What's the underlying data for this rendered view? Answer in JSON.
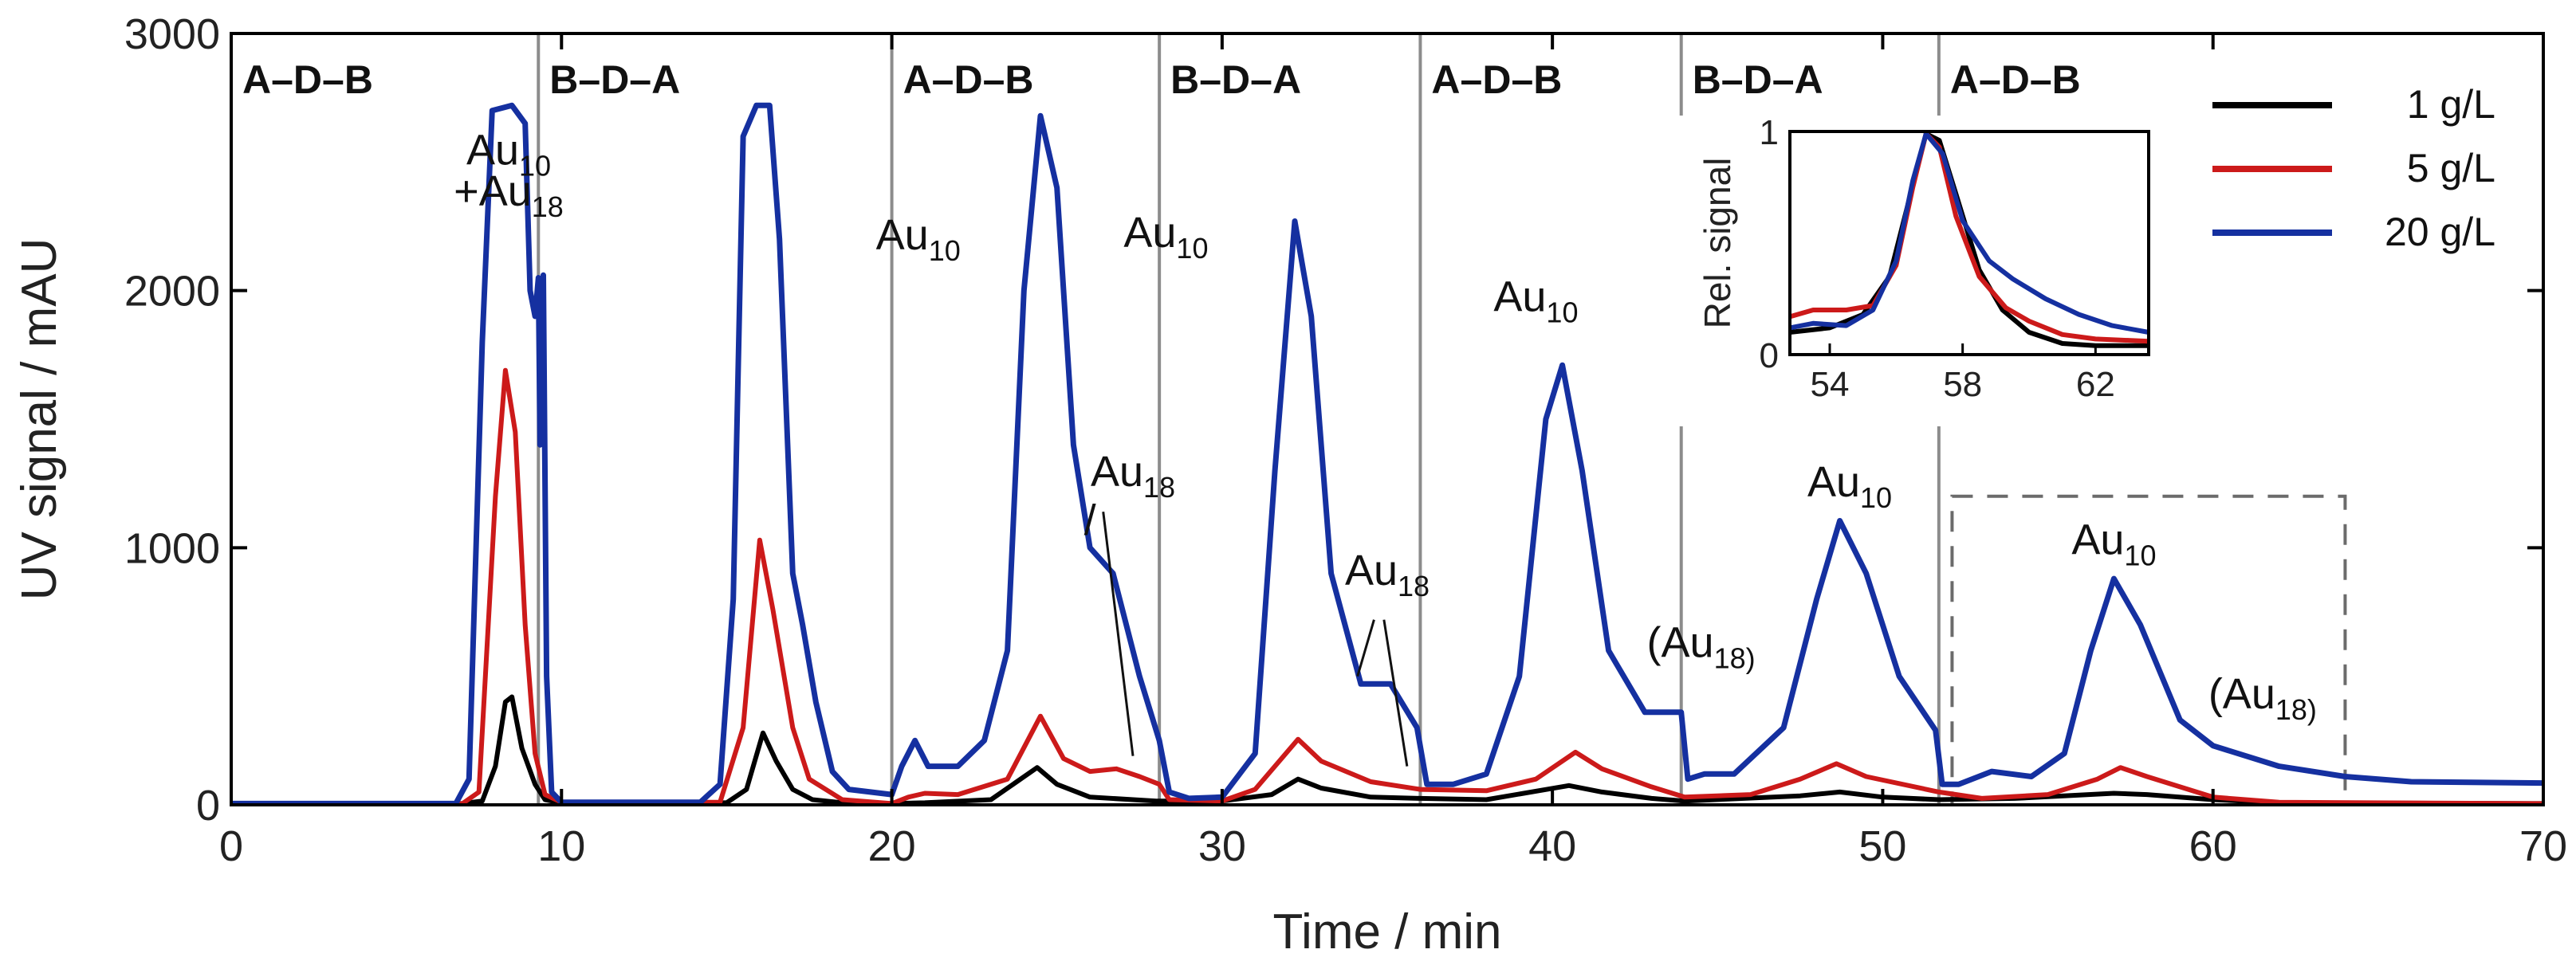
{
  "chart_data": {
    "type": "line",
    "title": "",
    "xlabel": "Time  / min",
    "ylabel": "UV signal  / mAU",
    "xlim": [
      0,
      70
    ],
    "ylim": [
      0,
      3000
    ],
    "x_ticks": [
      "0",
      "10",
      "20",
      "30",
      "40",
      "50",
      "60",
      "70"
    ],
    "y_ticks": [
      "0",
      "1000",
      "2000",
      "3000"
    ],
    "segment_boundaries": [
      9.3,
      20.0,
      28.1,
      36.0,
      43.9,
      51.7
    ],
    "segments": [
      {
        "label": "A–D–B",
        "start": 0.0
      },
      {
        "label": "B–D–A",
        "start": 9.3
      },
      {
        "label": "A–D–B",
        "start": 20.0
      },
      {
        "label": "B–D–A",
        "start": 28.1
      },
      {
        "label": "A–D–B",
        "start": 36.0
      },
      {
        "label": "B–D–A",
        "start": 43.9
      },
      {
        "label": "A–D–B",
        "start": 51.7
      }
    ],
    "series": [
      {
        "name": "1 g/L",
        "color": "#000000",
        "points": [
          [
            0,
            5
          ],
          [
            7.0,
            5
          ],
          [
            7.6,
            15
          ],
          [
            8.0,
            150
          ],
          [
            8.3,
            400
          ],
          [
            8.5,
            420
          ],
          [
            8.8,
            220
          ],
          [
            9.2,
            80
          ],
          [
            9.5,
            20
          ],
          [
            10,
            8
          ],
          [
            15.0,
            8
          ],
          [
            15.6,
            60
          ],
          [
            16.1,
            280
          ],
          [
            16.5,
            170
          ],
          [
            17,
            60
          ],
          [
            17.6,
            20
          ],
          [
            18.5,
            8
          ],
          [
            20.0,
            5
          ],
          [
            21,
            8
          ],
          [
            23.0,
            20
          ],
          [
            24.4,
            145
          ],
          [
            25.0,
            80
          ],
          [
            26.0,
            30
          ],
          [
            28.0,
            15
          ],
          [
            30.0,
            15
          ],
          [
            31.5,
            40
          ],
          [
            32.3,
            100
          ],
          [
            33.0,
            65
          ],
          [
            34.5,
            30
          ],
          [
            36.0,
            25
          ],
          [
            38.0,
            20
          ],
          [
            40.5,
            75
          ],
          [
            41.5,
            50
          ],
          [
            43,
            25
          ],
          [
            44,
            15
          ],
          [
            47.5,
            35
          ],
          [
            48.7,
            50
          ],
          [
            50,
            30
          ],
          [
            51.7,
            20
          ],
          [
            54,
            25
          ],
          [
            57,
            45
          ],
          [
            58,
            40
          ],
          [
            60,
            20
          ],
          [
            62,
            8
          ],
          [
            70,
            5
          ]
        ]
      },
      {
        "name": "5 g/L",
        "color": "#cc1a1a",
        "points": [
          [
            0,
            5
          ],
          [
            7.0,
            5
          ],
          [
            7.5,
            50
          ],
          [
            8.0,
            1200
          ],
          [
            8.3,
            1690
          ],
          [
            8.6,
            1450
          ],
          [
            8.9,
            700
          ],
          [
            9.2,
            200
          ],
          [
            9.5,
            40
          ],
          [
            10,
            10
          ],
          [
            14.8,
            10
          ],
          [
            15.5,
            300
          ],
          [
            16.0,
            1030
          ],
          [
            16.4,
            760
          ],
          [
            17.0,
            300
          ],
          [
            17.5,
            100
          ],
          [
            18.5,
            20
          ],
          [
            20.0,
            5
          ],
          [
            20.5,
            30
          ],
          [
            21.0,
            45
          ],
          [
            22,
            40
          ],
          [
            23.5,
            100
          ],
          [
            24.5,
            345
          ],
          [
            25.2,
            180
          ],
          [
            26.0,
            130
          ],
          [
            26.8,
            140
          ],
          [
            27.5,
            110
          ],
          [
            28.1,
            80
          ],
          [
            28.4,
            20
          ],
          [
            30,
            15
          ],
          [
            31.0,
            60
          ],
          [
            32.3,
            255
          ],
          [
            33.0,
            170
          ],
          [
            34.5,
            90
          ],
          [
            36.0,
            60
          ],
          [
            38.0,
            55
          ],
          [
            39.5,
            100
          ],
          [
            40.7,
            205
          ],
          [
            41.5,
            140
          ],
          [
            43,
            70
          ],
          [
            44,
            30
          ],
          [
            46,
            40
          ],
          [
            47.5,
            100
          ],
          [
            48.6,
            160
          ],
          [
            49.5,
            110
          ],
          [
            51.7,
            50
          ],
          [
            53,
            25
          ],
          [
            55,
            40
          ],
          [
            56.5,
            100
          ],
          [
            57.2,
            145
          ],
          [
            58,
            110
          ],
          [
            60,
            30
          ],
          [
            62,
            10
          ],
          [
            70,
            5
          ]
        ]
      },
      {
        "name": "20 g/L",
        "color": "#1530a0",
        "points": [
          [
            0,
            5
          ],
          [
            6.8,
            5
          ],
          [
            7.2,
            100
          ],
          [
            7.6,
            1800
          ],
          [
            7.9,
            2700
          ],
          [
            8.5,
            2720
          ],
          [
            8.9,
            2650
          ],
          [
            9.05,
            2000
          ],
          [
            9.2,
            1900
          ],
          [
            9.3,
            2050
          ],
          [
            9.35,
            1400
          ],
          [
            9.45,
            2060
          ],
          [
            9.55,
            500
          ],
          [
            9.7,
            50
          ],
          [
            10,
            10
          ],
          [
            14.2,
            10
          ],
          [
            14.8,
            80
          ],
          [
            15.2,
            800
          ],
          [
            15.5,
            2600
          ],
          [
            15.9,
            2720
          ],
          [
            16.3,
            2720
          ],
          [
            16.6,
            2200
          ],
          [
            17.0,
            900
          ],
          [
            17.3,
            700
          ],
          [
            17.7,
            400
          ],
          [
            18.2,
            130
          ],
          [
            18.7,
            60
          ],
          [
            20.0,
            40
          ],
          [
            20.3,
            150
          ],
          [
            20.7,
            250
          ],
          [
            21.1,
            150
          ],
          [
            22.0,
            150
          ],
          [
            22.8,
            250
          ],
          [
            23.5,
            600
          ],
          [
            24.0,
            2000
          ],
          [
            24.5,
            2680
          ],
          [
            25.0,
            2400
          ],
          [
            25.5,
            1400
          ],
          [
            26.0,
            1000
          ],
          [
            26.7,
            900
          ],
          [
            27.5,
            500
          ],
          [
            28.1,
            250
          ],
          [
            28.4,
            50
          ],
          [
            29,
            25
          ],
          [
            30.0,
            30
          ],
          [
            31.0,
            200
          ],
          [
            31.6,
            1300
          ],
          [
            32.2,
            2270
          ],
          [
            32.7,
            1900
          ],
          [
            33.3,
            900
          ],
          [
            34.2,
            470
          ],
          [
            35.1,
            470
          ],
          [
            35.9,
            300
          ],
          [
            36.2,
            80
          ],
          [
            37,
            80
          ],
          [
            38.0,
            120
          ],
          [
            39.0,
            500
          ],
          [
            39.8,
            1500
          ],
          [
            40.3,
            1710
          ],
          [
            40.9,
            1300
          ],
          [
            41.7,
            600
          ],
          [
            42.8,
            360
          ],
          [
            43.9,
            360
          ],
          [
            44.1,
            100
          ],
          [
            44.6,
            120
          ],
          [
            45.5,
            120
          ],
          [
            47.0,
            300
          ],
          [
            48.0,
            800
          ],
          [
            48.7,
            1105
          ],
          [
            49.5,
            900
          ],
          [
            50.5,
            500
          ],
          [
            51.6,
            290
          ],
          [
            51.8,
            80
          ],
          [
            52.3,
            80
          ],
          [
            53.3,
            130
          ],
          [
            54.5,
            110
          ],
          [
            55.5,
            200
          ],
          [
            56.3,
            600
          ],
          [
            57.0,
            880
          ],
          [
            57.8,
            700
          ],
          [
            59.0,
            330
          ],
          [
            60.0,
            230
          ],
          [
            62.0,
            150
          ],
          [
            64.0,
            110
          ],
          [
            66,
            90
          ],
          [
            70,
            85
          ]
        ]
      }
    ],
    "annotations": [
      {
        "text": "Au",
        "sub": "10",
        "x": 8.4,
        "y": 2490
      },
      {
        "text": "+Au",
        "sub": "18",
        "x": 8.4,
        "y": 2330
      },
      {
        "text": "Au",
        "sub": "10",
        "x": 20.8,
        "y": 2160
      },
      {
        "text": "Au",
        "sub": "18",
        "x": 27.3,
        "y": 1240
      },
      {
        "text": "/",
        "sub": "",
        "x": 26.0,
        "y": 1050
      },
      {
        "text": "Au",
        "sub": "10",
        "x": 28.3,
        "y": 2170
      },
      {
        "text": "Au",
        "sub": "18",
        "x": 35.0,
        "y": 855
      },
      {
        "text": "Au",
        "sub": "10",
        "x": 39.5,
        "y": 1920
      },
      {
        "text": "(Au",
        "sub": "18)",
        "x": 44.5,
        "y": 575
      },
      {
        "text": "Au",
        "sub": "10",
        "x": 49.0,
        "y": 1200
      },
      {
        "text": "Au",
        "sub": "10",
        "x": 57.0,
        "y": 975
      },
      {
        "text": "(Au",
        "sub": "18)",
        "x": 61.5,
        "y": 375
      }
    ],
    "leader_lines": [
      {
        "from": [
          26.4,
          1140
        ],
        "to": [
          27.3,
          190
        ]
      },
      {
        "from": [
          34.9,
          720
        ],
        "to": [
          35.6,
          150
        ]
      },
      {
        "from": [
          34.6,
          720
        ],
        "to": [
          34.1,
          500
        ]
      }
    ],
    "dashed_box": {
      "x": [
        52.1,
        64.0
      ],
      "y": [
        0,
        1200
      ]
    },
    "legend": {
      "position": "top-right",
      "entries": [
        "1 g/L",
        "5 g/L",
        "20 g/L"
      ]
    },
    "inset": {
      "ylabel": "Rel. signal",
      "xlim": [
        52.8,
        63.6
      ],
      "ylim": [
        0,
        1
      ],
      "x_ticks": [
        "54",
        "58",
        "62"
      ],
      "y_ticks": [
        "0",
        "1"
      ],
      "series": [
        {
          "name": "1 g/L",
          "color": "#000000",
          "points": [
            [
              52.8,
              0.1
            ],
            [
              54,
              0.12
            ],
            [
              55,
              0.18
            ],
            [
              55.8,
              0.35
            ],
            [
              56.4,
              0.7
            ],
            [
              56.9,
              0.99
            ],
            [
              57.3,
              0.96
            ],
            [
              57.8,
              0.72
            ],
            [
              58.5,
              0.38
            ],
            [
              59.2,
              0.2
            ],
            [
              60,
              0.1
            ],
            [
              61,
              0.05
            ],
            [
              62,
              0.04
            ],
            [
              63.6,
              0.04
            ]
          ]
        },
        {
          "name": "5 g/L",
          "color": "#cc1a1a",
          "points": [
            [
              52.8,
              0.17
            ],
            [
              53.5,
              0.2
            ],
            [
              54.5,
              0.2
            ],
            [
              55.3,
              0.22
            ],
            [
              56,
              0.4
            ],
            [
              56.5,
              0.75
            ],
            [
              56.9,
              0.99
            ],
            [
              57.3,
              0.93
            ],
            [
              57.8,
              0.62
            ],
            [
              58.5,
              0.35
            ],
            [
              59.3,
              0.21
            ],
            [
              60,
              0.15
            ],
            [
              61,
              0.09
            ],
            [
              62,
              0.07
            ],
            [
              63.6,
              0.06
            ]
          ]
        },
        {
          "name": "20 g/L",
          "color": "#1530a0",
          "points": [
            [
              52.8,
              0.12
            ],
            [
              53.5,
              0.14
            ],
            [
              54.5,
              0.13
            ],
            [
              55.3,
              0.2
            ],
            [
              56,
              0.42
            ],
            [
              56.5,
              0.78
            ],
            [
              56.9,
              0.99
            ],
            [
              57.4,
              0.9
            ],
            [
              58,
              0.6
            ],
            [
              58.8,
              0.42
            ],
            [
              59.5,
              0.34
            ],
            [
              60.5,
              0.25
            ],
            [
              61.5,
              0.18
            ],
            [
              62.5,
              0.13
            ],
            [
              63.6,
              0.1
            ]
          ]
        }
      ]
    }
  }
}
